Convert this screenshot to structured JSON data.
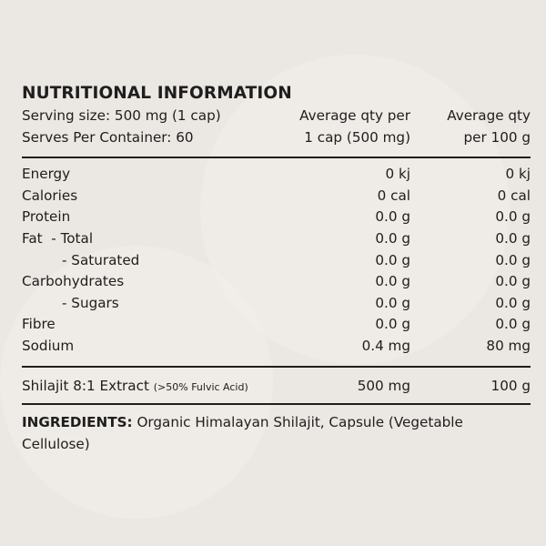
{
  "title": "NUTRITIONAL INFORMATION",
  "header": {
    "serving_size": "Serving size: 500 mg (1 cap)",
    "serves": "Serves Per Container: 60",
    "col2_line1": "Average qty per",
    "col2_line2": "1 cap (500 mg)",
    "col3_line1": "Average qty",
    "col3_line2": "per 100 g"
  },
  "rows": [
    {
      "label": "Energy",
      "per_serve": "0 kj",
      "per_100g": "0 kj"
    },
    {
      "label": "Calories",
      "per_serve": "0 cal",
      "per_100g": "0 cal"
    },
    {
      "label": "Protein",
      "per_serve": "0.0 g",
      "per_100g": "0.0 g"
    },
    {
      "label": "Fat  - Total",
      "per_serve": "0.0 g",
      "per_100g": "0.0 g"
    },
    {
      "label": "- Saturated",
      "per_serve": "0.0 g",
      "per_100g": "0.0 g"
    },
    {
      "label": "Carbohydrates",
      "per_serve": "0.0 g",
      "per_100g": "0.0 g"
    },
    {
      "label": "- Sugars",
      "per_serve": "0.0 g",
      "per_100g": "0.0 g"
    },
    {
      "label": "Fibre",
      "per_serve": "0.0 g",
      "per_100g": "0.0 g"
    },
    {
      "label": "Sodium",
      "per_serve": "0.4 mg",
      "per_100g": "80 mg"
    }
  ],
  "extract": {
    "label": "Shilajit 8:1 Extract",
    "note": "(>50% Fulvic Acid)",
    "per_serve": "500 mg",
    "per_100g": "100 g"
  },
  "ingredients": {
    "heading": "INGREDIENTS:",
    "text": "Organic Himalayan Shilajit, Capsule (Vegetable Cellulose)"
  }
}
